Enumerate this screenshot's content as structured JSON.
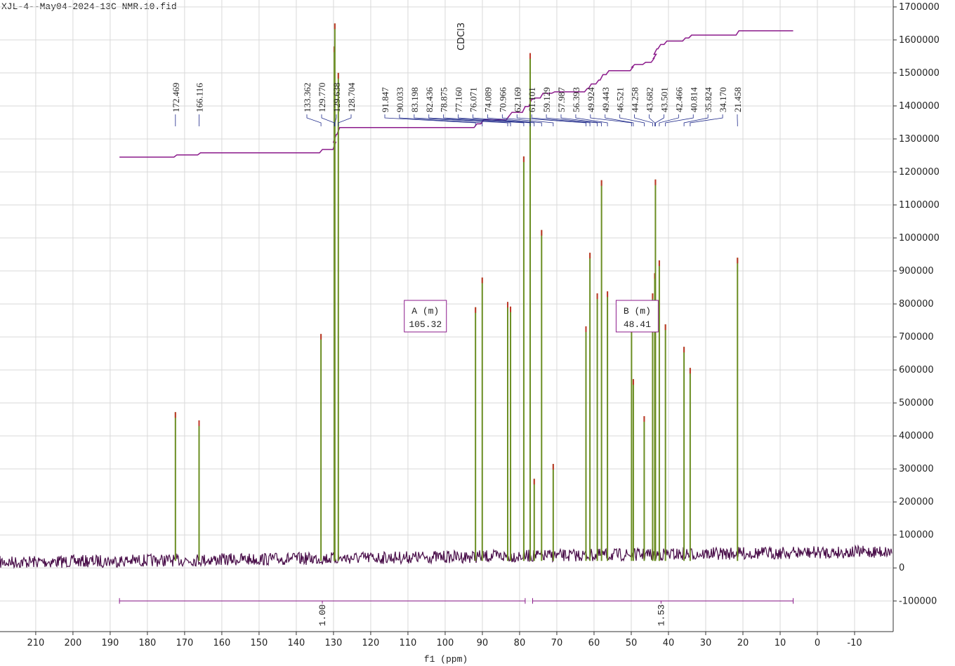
{
  "chart_data": {
    "type": "spectrum",
    "title": "XJL-4--May04-2024-13C NMR.10.fid",
    "x_label": "f1 (ppm)",
    "solvent_label": "CDCl3",
    "xlim": [
      219.6,
      -20
    ],
    "xticks": [
      210,
      200,
      190,
      180,
      170,
      160,
      150,
      140,
      130,
      120,
      110,
      100,
      90,
      80,
      70,
      60,
      50,
      40,
      30,
      20,
      10,
      0,
      -10
    ],
    "ylim": [
      -193000,
      1721000
    ],
    "yticks": [
      -100000,
      0,
      100000,
      200000,
      300000,
      400000,
      500000,
      600000,
      700000,
      800000,
      900000,
      1000000,
      1100000,
      1200000,
      1300000,
      1400000,
      1500000,
      1600000,
      1700000
    ],
    "grid": true,
    "spectrum_color": "#4a0f4a",
    "peak_color": "#6b8e23",
    "label_color": "#1f2a8a",
    "integral_color": "#8b1a8b",
    "x": [
      172.469,
      166.116,
      133.362,
      129.77,
      129.638,
      128.704,
      91.847,
      90.033,
      83.198,
      82.436,
      78.875,
      77.16,
      76.071,
      74.089,
      70.966,
      62.169,
      61.101,
      59.129,
      57.987,
      56.393,
      49.924,
      49.443,
      46.521,
      44.258,
      43.682,
      43.501,
      42.466,
      40.814,
      35.824,
      34.17,
      21.458
    ],
    "x_labels": [
      "172.469",
      "166.116",
      "133.362",
      "129.770",
      "129.638",
      "128.704",
      "91.847",
      "90.033",
      "83.198",
      "82.436",
      "78.875",
      "77.160",
      "76.071",
      "74.089",
      "70.966",
      "62.169",
      "61.101",
      "59.129",
      "57.987",
      "56.393",
      "49.924",
      "49.443",
      "46.521",
      "44.258",
      "43.682",
      "43.501",
      "42.466",
      "40.814",
      "35.824",
      "34.170",
      "21.458"
    ],
    "values": [
      472000,
      447000,
      709000,
      1580000,
      1650000,
      1500000,
      790000,
      880000,
      806000,
      792000,
      1247000,
      1560000,
      270000,
      1024000,
      315000,
      732000,
      955000,
      832000,
      1175000,
      838000,
      781000,
      572000,
      460000,
      832000,
      893000,
      1177000,
      932000,
      738000,
      670000,
      606000,
      940000
    ],
    "multiplets": [
      {
        "name": "A (m)",
        "shift": 105.32
      },
      {
        "name": "B (m)",
        "shift": 48.41
      }
    ],
    "integrals": [
      {
        "from": 187.5,
        "to": 78.5,
        "value": 1,
        "label": "1.00"
      },
      {
        "from": 76.5,
        "to": 6.5,
        "value": 1.53,
        "label": "1.53"
      }
    ]
  }
}
